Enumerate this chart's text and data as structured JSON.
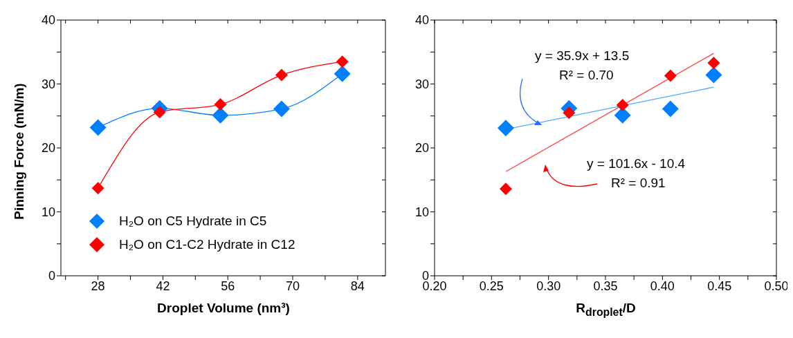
{
  "chart_data": [
    {
      "type": "line",
      "xlabel": "Droplet Volume (nm³)",
      "ylabel": "Pinning Force (mN/m)",
      "marker": "diamond",
      "legend": "bottom",
      "xlim": [
        20,
        90
      ],
      "xticks": [
        {
          "value": 21,
          "label": null
        },
        28,
        {
          "value": 35,
          "label": null
        },
        42,
        {
          "value": 49,
          "label": null
        },
        56,
        {
          "value": 63,
          "label": null
        },
        70,
        {
          "value": 77,
          "label": null
        },
        84
      ],
      "ylim": [
        0,
        40
      ],
      "yticks": [
        0,
        {
          "value": 5,
          "label": null
        },
        10,
        {
          "value": 15,
          "label": null
        },
        20,
        {
          "value": 25,
          "label": null
        },
        30,
        {
          "value": 35,
          "label": null
        },
        40
      ],
      "series": [
        {
          "name": "H₂O on C5 Hydrate in C5",
          "color": "#0080ff",
          "x": [
            28,
            41.3,
            54.4,
            67.6,
            80.7
          ],
          "values": [
            23.2,
            26.2,
            25.1,
            26.1,
            31.6
          ]
        },
        {
          "name": "H₂O on C1-C2 Hydrate in C12",
          "color": "#ff0000",
          "x": [
            28,
            41.3,
            54.4,
            67.6,
            80.7
          ],
          "values": [
            13.7,
            25.6,
            26.8,
            31.4,
            33.5
          ]
        }
      ]
    },
    {
      "type": "scatter",
      "xlabel": "R$_{droplet}$/D",
      "marker": "diamond",
      "xlim": [
        0.2,
        0.5
      ],
      "xticks": [
        {
          "value": 0.2,
          "label": "0.20"
        },
        {
          "value": 0.225,
          "label": null
        },
        {
          "value": 0.25,
          "label": "0.25"
        },
        {
          "value": 0.275,
          "label": null
        },
        {
          "value": 0.3,
          "label": "0.30"
        },
        {
          "value": 0.325,
          "label": null
        },
        {
          "value": 0.35,
          "label": "0.35"
        },
        {
          "value": 0.375,
          "label": null
        },
        {
          "value": 0.4,
          "label": "0.40"
        },
        {
          "value": 0.425,
          "label": null
        },
        {
          "value": 0.45,
          "label": "0.45"
        },
        {
          "value": 0.475,
          "label": null
        },
        {
          "value": 0.5,
          "label": "0.50"
        }
      ],
      "ylim": [
        0,
        40
      ],
      "yticks": [
        0,
        {
          "value": 5,
          "label": null
        },
        10,
        {
          "value": 15,
          "label": null
        },
        20,
        {
          "value": 25,
          "label": null
        },
        30,
        {
          "value": 35,
          "label": null
        },
        40
      ],
      "series": [
        {
          "color": "#0080ff",
          "x": [
            0.2625,
            0.318,
            0.365,
            0.407,
            0.445
          ],
          "values": [
            23.1,
            26.2,
            25.1,
            26.1,
            31.4
          ]
        },
        {
          "color": "#ff0000",
          "x": [
            0.2625,
            0.318,
            0.365,
            0.407,
            0.445
          ],
          "values": [
            13.6,
            25.5,
            26.7,
            31.3,
            33.3
          ]
        },
        {
          "type": "line",
          "marker": "none",
          "color": "#4da6ff",
          "x": [
            0.2625,
            0.445
          ],
          "values": [
            22.9,
            29.5
          ]
        },
        {
          "type": "line",
          "marker": "none",
          "color": "#ff4040",
          "x": [
            0.2625,
            0.445
          ],
          "values": [
            16.3,
            34.8
          ]
        }
      ],
      "annotations": [
        "y = 35.9x + 13.5",
        "R² = 0.70",
        "y = 101.6x - 10.4",
        "R² = 0.91"
      ]
    }
  ]
}
